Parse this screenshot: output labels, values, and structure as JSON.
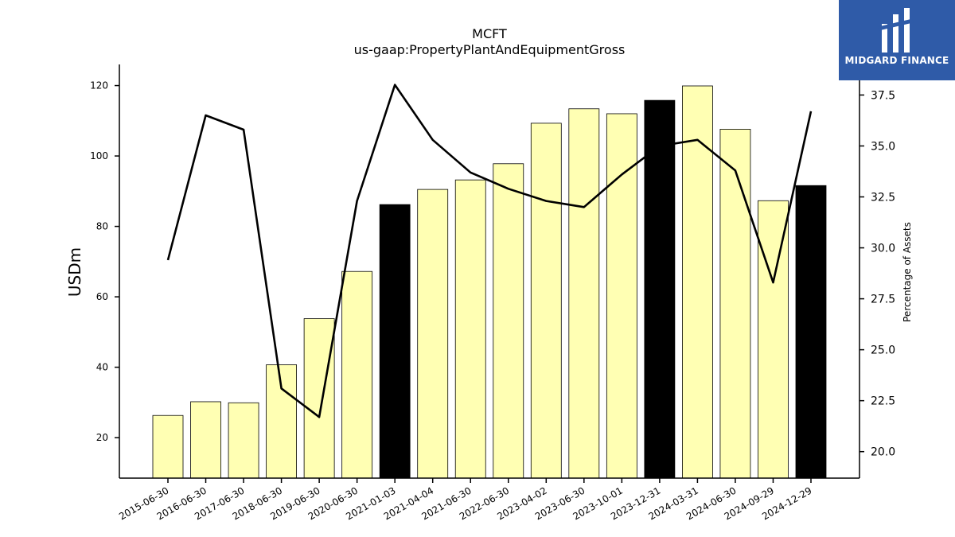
{
  "chart_data": {
    "type": "bar",
    "title": "MCFT",
    "subtitle": "us-gaap:PropertyPlantAndEquipmentGross",
    "ylabel": "USDm",
    "ylabel_right": "Percentage of Assets",
    "categories": [
      "2015-06-30",
      "2016-06-30",
      "2017-06-30",
      "2018-06-30",
      "2019-06-30",
      "2020-06-30",
      "2021-01-03",
      "2021-04-04",
      "2021-06-30",
      "2022-06-30",
      "2023-04-02",
      "2023-06-30",
      "2023-10-01",
      "2023-12-31",
      "2024-03-31",
      "2024-06-30",
      "2024-09-29",
      "2024-12-29"
    ],
    "series": [
      {
        "axis": "left",
        "kind": "bar",
        "values": [
          26.3,
          30.2,
          29.9,
          40.7,
          53.8,
          67.2,
          86.2,
          90.5,
          93.2,
          97.8,
          109.3,
          113.4,
          112.0,
          115.8,
          119.9,
          107.6,
          87.3,
          91.6
        ],
        "highlight": [
          false,
          false,
          false,
          false,
          false,
          false,
          true,
          false,
          false,
          false,
          false,
          false,
          false,
          true,
          false,
          false,
          false,
          true
        ]
      },
      {
        "axis": "right",
        "kind": "line",
        "values": [
          29.4,
          36.5,
          35.8,
          23.1,
          21.7,
          32.3,
          38.0,
          35.3,
          33.7,
          32.9,
          32.3,
          32.0,
          33.6,
          35.0,
          35.3,
          33.8,
          28.3,
          36.7
        ]
      }
    ],
    "ylim": [
      8.5,
      126.0
    ],
    "yticks": [
      20,
      40,
      60,
      80,
      100,
      120
    ],
    "ylim_right": [
      18.7,
      39.0
    ],
    "yticks_right": [
      "20.0",
      "22.5",
      "25.0",
      "27.5",
      "30.0",
      "32.5",
      "35.0",
      "37.5"
    ],
    "colors": {
      "bar_fill": "#ffffb3",
      "bar_highlight": "#000000",
      "bar_edge": "#000000",
      "line": "#000000"
    },
    "grid": false
  },
  "logo": {
    "text": "MIDGARD FINANCE",
    "icon": "midgard-logo-icon",
    "background": "#2f5ba8"
  }
}
